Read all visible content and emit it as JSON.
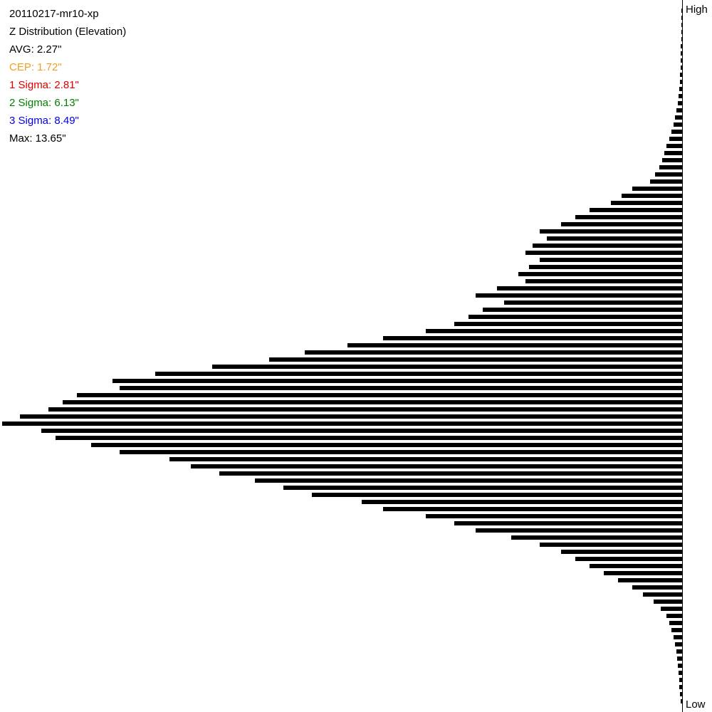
{
  "chart_data": {
    "type": "hbar-histogram",
    "title": "20110217-mr10-xp",
    "subtitle": "Z Distribution (Elevation)",
    "annotations": [
      {
        "text": "AVG: 2.27\"",
        "color": "#000000"
      },
      {
        "text": "CEP: 1.72\"",
        "color": "#f0a020"
      },
      {
        "text": "1 Sigma: 2.81\"",
        "color": "#e00000"
      },
      {
        "text": "2 Sigma: 6.13\"",
        "color": "#008000"
      },
      {
        "text": "3 Sigma: 8.49\"",
        "color": "#0000e0"
      },
      {
        "text": "Max: 13.65\"",
        "color": "#000000"
      }
    ],
    "axis_labels": [
      "High",
      "Low"
    ],
    "color": "#000000",
    "values": [
      1,
      1,
      1,
      1,
      1,
      2,
      2,
      2,
      2,
      3,
      3,
      4,
      5,
      6,
      8,
      10,
      12,
      15,
      18,
      22,
      25,
      28,
      32,
      38,
      45,
      70,
      85,
      100,
      130,
      150,
      170,
      200,
      190,
      210,
      220,
      200,
      215,
      230,
      220,
      260,
      290,
      250,
      280,
      300,
      320,
      360,
      420,
      470,
      530,
      580,
      660,
      740,
      800,
      790,
      850,
      870,
      890,
      930,
      955,
      900,
      880,
      830,
      790,
      720,
      690,
      650,
      600,
      560,
      520,
      450,
      420,
      360,
      320,
      290,
      240,
      200,
      170,
      150,
      130,
      110,
      90,
      70,
      55,
      40,
      30,
      22,
      18,
      15,
      12,
      10,
      8,
      7,
      6,
      5,
      4,
      4,
      3,
      2
    ]
  }
}
